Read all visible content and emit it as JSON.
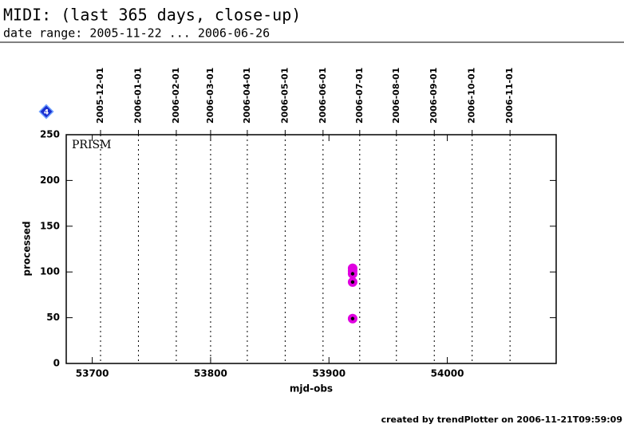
{
  "chart_data": {
    "type": "scatter",
    "title": "MIDI: (last 365 days, close-up)",
    "subtitle": "date range: 2005-11-22 ... 2006-06-26",
    "xlabel": "mjd-obs",
    "ylabel": "processed",
    "annotation": "PRISM",
    "badge": "4",
    "footer": "created by trendPlotter on 2006-11-21T09:59:09",
    "xlim": [
      53678,
      54092
    ],
    "ylim": [
      0,
      250
    ],
    "xticks": [
      53700,
      53800,
      53900,
      54000
    ],
    "yticks": [
      0,
      50,
      100,
      150,
      200,
      250
    ],
    "date_lines": [
      {
        "value": 53707,
        "label": "2005-12-01"
      },
      {
        "value": 53739,
        "label": "2006-01-01"
      },
      {
        "value": 53771,
        "label": "2006-02-01"
      },
      {
        "value": 53800,
        "label": "2006-03-01"
      },
      {
        "value": 53831,
        "label": "2006-04-01"
      },
      {
        "value": 53863,
        "label": "2006-05-01"
      },
      {
        "value": 53895,
        "label": "2006-06-01"
      },
      {
        "value": 53926,
        "label": "2006-07-01"
      },
      {
        "value": 53957,
        "label": "2006-08-01"
      },
      {
        "value": 53989,
        "label": "2006-09-01"
      },
      {
        "value": 54021,
        "label": "2006-10-01"
      },
      {
        "value": 54053,
        "label": "2006-11-01"
      }
    ],
    "series": [
      {
        "name": "PRISM",
        "color": "#e000e0",
        "x": [
          53920,
          53920,
          53920,
          53920,
          53920
        ],
        "values": [
          104,
          101,
          98,
          89,
          49
        ]
      }
    ]
  }
}
